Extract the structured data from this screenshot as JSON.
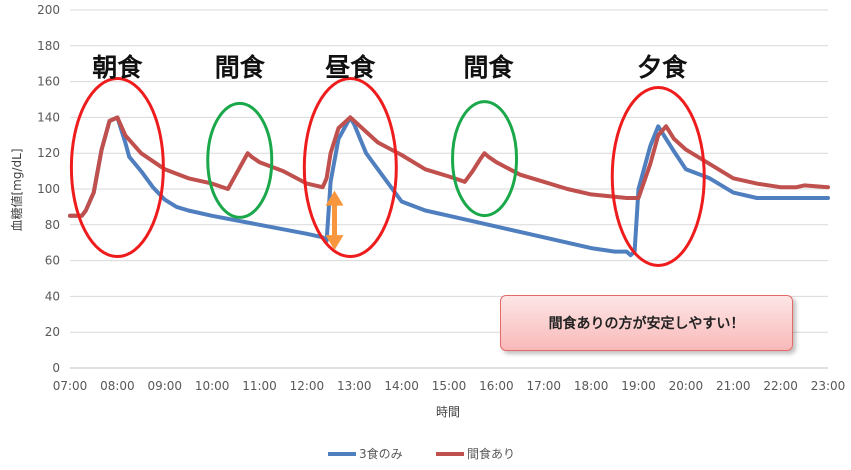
{
  "chart_data": {
    "type": "line",
    "title": "",
    "xlabel": "時間",
    "ylabel": "血糖値[mg/dL]",
    "ylim": [
      0,
      200
    ],
    "ytick_step": 20,
    "xlim": [
      "07:00",
      "23:00"
    ],
    "xtick_labels": [
      "07:00",
      "08:00",
      "09:00",
      "10:00",
      "11:00",
      "12:00",
      "13:00",
      "14:00",
      "15:00",
      "16:00",
      "17:00",
      "18:00",
      "19:00",
      "20:00",
      "21:00",
      "22:00",
      "23:00"
    ],
    "grid": true,
    "legend_position": "bottom",
    "series": [
      {
        "name": "3食のみ",
        "color": "#4f7fbf",
        "x": [
          "07:00",
          "07:15",
          "07:20",
          "07:30",
          "07:40",
          "07:50",
          "08:00",
          "08:10",
          "08:15",
          "08:30",
          "08:45",
          "09:00",
          "09:15",
          "09:30",
          "10:00",
          "11:00",
          "12:00",
          "12:20",
          "12:25",
          "12:30",
          "12:40",
          "12:55",
          "13:00",
          "13:15",
          "13:30",
          "14:00",
          "14:30",
          "15:00",
          "16:00",
          "17:00",
          "18:00",
          "18:30",
          "18:45",
          "18:50",
          "18:55",
          "19:00",
          "19:15",
          "19:25",
          "19:45",
          "20:00",
          "20:30",
          "21:00",
          "21:30",
          "22:00",
          "23:00"
        ],
        "y": [
          85,
          85,
          88,
          98,
          122,
          138,
          140,
          126,
          118,
          110,
          101,
          94,
          90,
          88,
          85,
          80,
          75,
          73,
          71,
          104,
          128,
          140,
          136,
          120,
          111,
          93,
          88,
          85,
          79,
          73,
          67,
          65,
          65,
          63,
          65,
          100,
          124,
          135,
          121,
          111,
          106,
          98,
          95,
          95,
          95
        ]
      },
      {
        "name": "間食あり",
        "color": "#c0504d",
        "x": [
          "07:00",
          "07:15",
          "07:20",
          "07:30",
          "07:40",
          "07:50",
          "08:00",
          "08:10",
          "08:30",
          "09:00",
          "09:30",
          "10:00",
          "10:20",
          "10:30",
          "10:40",
          "10:45",
          "10:50",
          "11:00",
          "11:30",
          "12:00",
          "12:20",
          "12:25",
          "12:30",
          "12:40",
          "12:55",
          "13:00",
          "13:30",
          "14:00",
          "14:30",
          "15:00",
          "15:20",
          "15:30",
          "15:40",
          "15:45",
          "15:50",
          "16:00",
          "16:30",
          "17:00",
          "17:30",
          "18:00",
          "18:45",
          "19:00",
          "19:15",
          "19:25",
          "19:35",
          "19:45",
          "20:00",
          "20:30",
          "21:00",
          "21:30",
          "22:00",
          "22:20",
          "22:30",
          "23:00"
        ],
        "y": [
          85,
          85,
          88,
          98,
          122,
          138,
          140,
          130,
          120,
          111,
          106,
          103,
          100,
          108,
          116,
          120,
          118,
          115,
          110,
          103,
          101,
          106,
          120,
          134,
          140,
          138,
          126,
          119,
          111,
          107,
          104,
          110,
          117,
          120,
          118,
          115,
          108,
          104,
          100,
          97,
          95,
          95,
          114,
          130,
          135,
          128,
          122,
          114,
          106,
          103,
          101,
          101,
          102,
          101
        ]
      }
    ],
    "annotations": {
      "meal_labels": [
        {
          "text": "朝食",
          "time": "08:00"
        },
        {
          "text": "間食",
          "time": "10:35"
        },
        {
          "text": "昼食",
          "time": "12:55"
        },
        {
          "text": "間食",
          "time": "15:50"
        },
        {
          "text": "夕食",
          "time": "19:30"
        }
      ],
      "circles": [
        {
          "center_time": "08:00",
          "center_value": 112,
          "color": "#ee1c1c"
        },
        {
          "center_time": "10:35",
          "center_value": 116,
          "color": "#1aa84a"
        },
        {
          "center_time": "12:55",
          "center_value": 112,
          "color": "#ee1c1c"
        },
        {
          "center_time": "15:45",
          "center_value": 117,
          "color": "#1aa84a"
        },
        {
          "center_time": "19:25",
          "center_value": 107,
          "color": "#ee1c1c"
        }
      ],
      "arrow": {
        "time": "12:35",
        "from_value": 98,
        "to_value": 67,
        "color": "#f7963c"
      },
      "callout_text": "間食ありの方が安定しやすい！"
    }
  }
}
